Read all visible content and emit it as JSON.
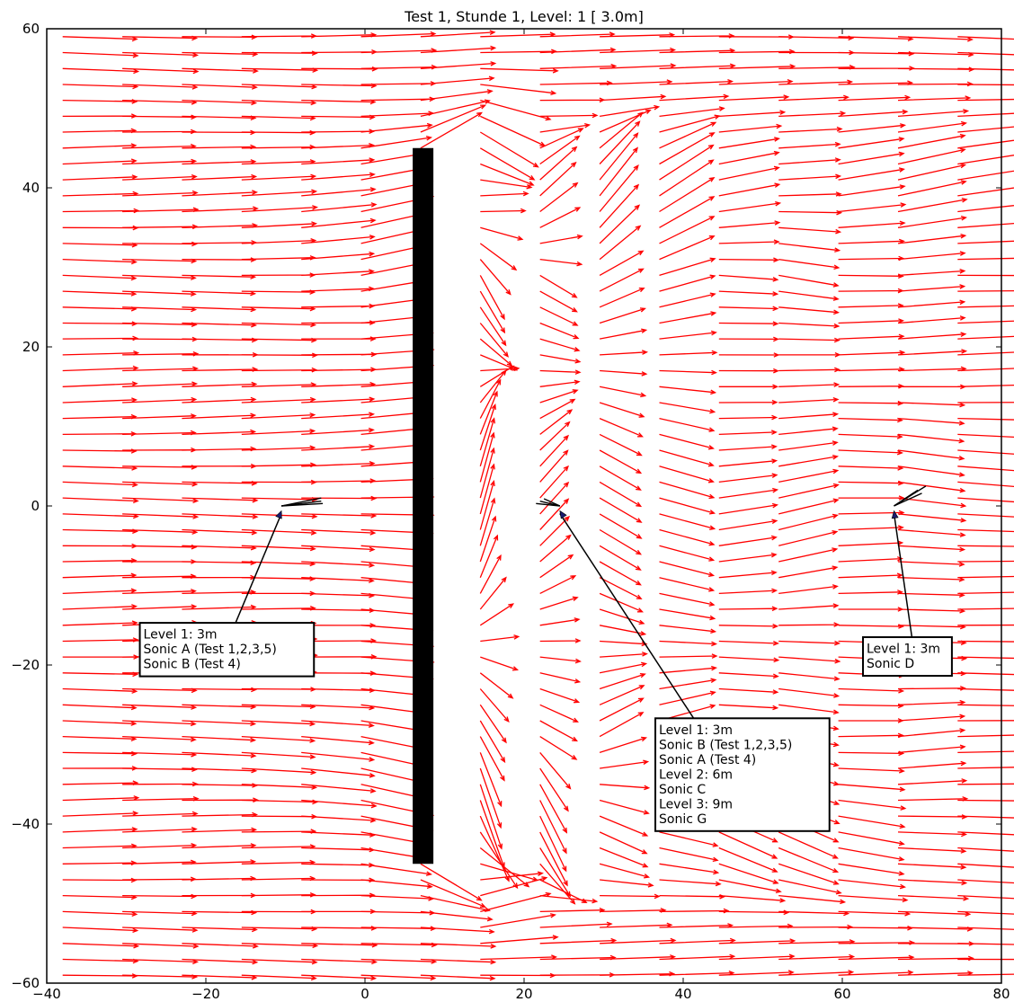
{
  "chart_data": {
    "type": "quiver",
    "title": "Test 1, Stunde 1, Level: 1 [ 3.0m]",
    "xlabel": "",
    "ylabel": "",
    "xlim": [
      -40,
      80
    ],
    "ylim": [
      -60,
      60
    ],
    "xticks": [
      -40,
      -20,
      0,
      20,
      40,
      60,
      80
    ],
    "yticks": [
      -60,
      -40,
      -20,
      0,
      20,
      40,
      60
    ],
    "xtick_labels": [
      "−40",
      "−20",
      "0",
      "20",
      "40",
      "60",
      "80"
    ],
    "ytick_labels": [
      "−60",
      "−40",
      "−20",
      "0",
      "20",
      "40",
      "60"
    ],
    "grid": false,
    "vector_color": "#ff0000",
    "obstacle": {
      "x": [
        6.0,
        8.6
      ],
      "y": [
        -45,
        45
      ],
      "color": "#000000"
    },
    "measured_vectors": [
      {
        "x": -10.5,
        "y": 0,
        "color": "#000000"
      },
      {
        "x": 24.5,
        "y": 0,
        "color": "#000000"
      },
      {
        "x": 66.5,
        "y": 0,
        "color": "#000000"
      }
    ],
    "annotations": [
      {
        "lines": [
          "Level 1: 3m",
          " Sonic A (Test 1,2,3,5)",
          " Sonic B (Test 4)"
        ],
        "point": [
          -10.5,
          -0.5
        ],
        "box_anchor": [
          -28.3,
          -14.7
        ]
      },
      {
        "lines": [
          "Level 1: 3m",
          " Sonic B (Test 1,2,3,5)",
          " Sonic A (Test 4)",
          "Level 2: 6m",
          " Sonic C",
          "Level 3: 9m",
          " Sonic G"
        ],
        "point": [
          24.5,
          -0.5
        ],
        "box_anchor": [
          36.5,
          -26.7
        ]
      },
      {
        "lines": [
          "Level 1: 3m",
          " Sonic D"
        ],
        "point": [
          66.5,
          -0.5
        ],
        "box_anchor": [
          62.6,
          -16.5
        ]
      }
    ]
  }
}
